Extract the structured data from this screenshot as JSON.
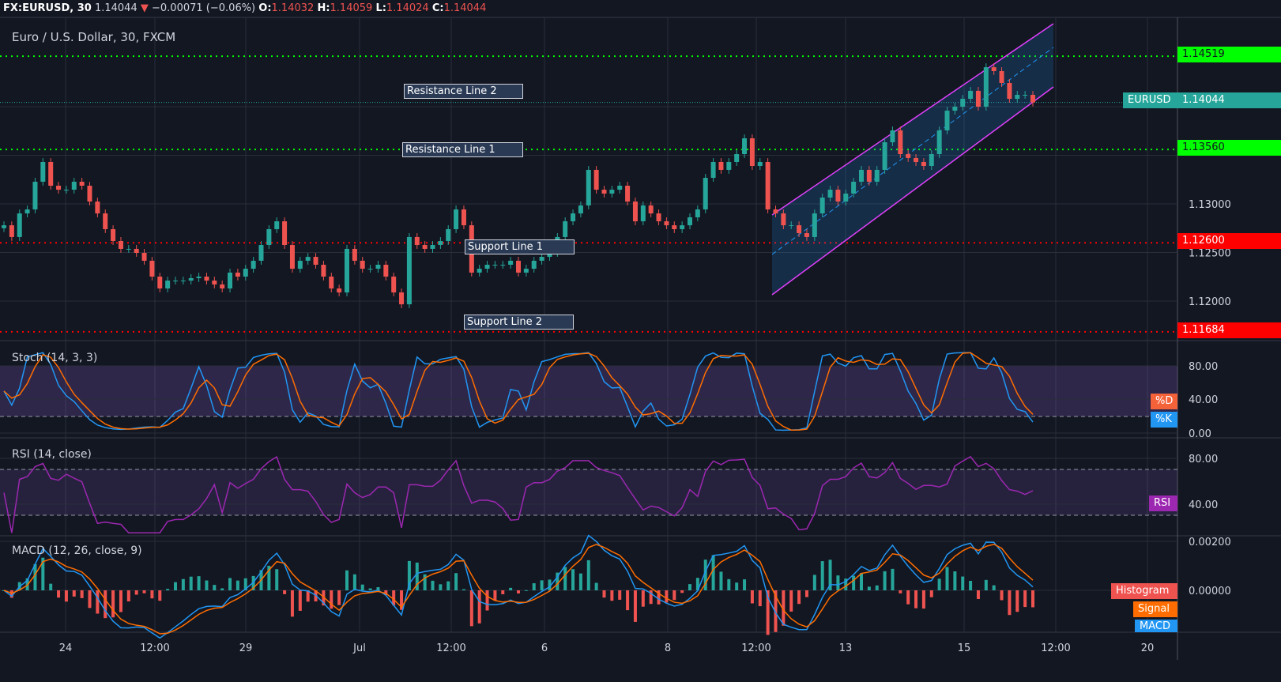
{
  "header": {
    "symbol": "FX:EURUSD, 30",
    "last": "1.14044",
    "change": "−0.00071 (−0.06%)",
    "o_label": "O:",
    "o": "1.14032",
    "h_label": "H:",
    "h": "1.14059",
    "l_label": "L:",
    "l": "1.14024",
    "c_label": "C:",
    "c": "1.14044"
  },
  "pane_title": "Euro / U.S. Dollar, 30, FXCM",
  "colors": {
    "background": "#131722",
    "up": "#26a69a",
    "down": "#ef5350",
    "resistance": "#00ff00",
    "support": "#ff0000",
    "channel": "#e040fb",
    "stoch_k": "#2196f3",
    "stoch_d": "#ff6d00",
    "rsi": "#9c27b0",
    "macd": "#2196f3",
    "signal": "#ff6d00"
  },
  "annotations": [
    {
      "label": "Resistance Line 2"
    },
    {
      "label": "Resistance Line 1"
    },
    {
      "label": "Support Line 1"
    },
    {
      "label": "Support Line 2"
    }
  ],
  "levels": [
    {
      "price": 1.14519,
      "label": "1.14519",
      "type": "resistance"
    },
    {
      "price": 1.1356,
      "label": "1.13560",
      "type": "resistance"
    },
    {
      "price": 1.126,
      "label": "1.12600",
      "type": "support"
    },
    {
      "price": 1.11684,
      "label": "1.11684",
      "type": "support"
    }
  ],
  "last_price_tag": {
    "symbol": "EURUSD",
    "price": "1.14044"
  },
  "indicators": {
    "stoch": {
      "title": "Stoch (14, 3, 3)",
      "d_label": "%D",
      "k_label": "%K",
      "ticks": [
        "80.00",
        "40.00",
        "0.00"
      ]
    },
    "rsi": {
      "title": "RSI (14, close)",
      "label": "RSI",
      "ticks": [
        "80.00",
        "40.00"
      ]
    },
    "macd": {
      "title": "MACD (12, 26, close, 9)",
      "hist_label": "Histogram",
      "signal_label": "Signal",
      "macd_label": "MACD",
      "ticks": [
        "0.00200",
        "0.00000"
      ]
    }
  },
  "chart_data": {
    "type": "candlestick",
    "title": "Euro / U.S. Dollar, 30, FXCM",
    "y_ticks": [
      "1.13000",
      "1.12500",
      "1.12000"
    ],
    "y_range": [
      1.1155,
      1.1483
    ],
    "x_ticks": [
      "24",
      "12:00",
      "29",
      "Jul",
      "12:00",
      "6",
      "8",
      "12:00",
      "13",
      "12:00",
      "15",
      "12:00",
      "20"
    ],
    "grid": true,
    "close": [
      1.1278,
      1.12659,
      1.12902,
      1.12943,
      1.13228,
      1.13431,
      1.13187,
      1.13146,
      1.13146,
      1.13228,
      1.13187,
      1.13024,
      1.12902,
      1.1274,
      1.12618,
      1.12537,
      1.12537,
      1.12496,
      1.12415,
      1.12252,
      1.1213,
      1.12211,
      1.12211,
      1.12211,
      1.12236,
      1.12252,
      1.12211,
      1.12171,
      1.1213,
      1.12293,
      1.12252,
      1.12333,
      1.12415,
      1.12577,
      1.1274,
      1.12821,
      1.12577,
      1.12333,
      1.12415,
      1.12455,
      1.12374,
      1.12252,
      1.1213,
      1.12089,
      1.12537,
      1.12415,
      1.12333,
      1.12333,
      1.12374,
      1.12252,
      1.12089,
      1.11967,
      1.12659,
      1.12577,
      1.12537,
      1.12577,
      1.12618,
      1.1274,
      1.12943,
      1.1278,
      1.12293,
      1.12333,
      1.12374,
      1.12374,
      1.12374,
      1.12415,
      1.12293,
      1.12333,
      1.12415,
      1.12455,
      1.12496,
      1.12659,
      1.12821,
      1.12902,
      1.12984,
      1.1335,
      1.13146,
      1.13106,
      1.13146,
      1.13187,
      1.13024,
      1.12821,
      1.12984,
      1.12902,
      1.12821,
      1.1278,
      1.1274,
      1.1278,
      1.12862,
      1.12943,
      1.13268,
      1.13431,
      1.1335,
      1.13431,
      1.13512,
      1.13675,
      1.1339,
      1.13431,
      1.12943,
      1.12902,
      1.1278,
      1.1278,
      1.12699,
      1.12659,
      1.12902,
      1.13065,
      1.13146,
      1.13024,
      1.13106,
      1.13228,
      1.1335,
      1.13228,
      1.1335,
      1.13634,
      1.13756,
      1.13512,
      1.13472,
      1.13431,
      1.1339,
      1.13512,
      1.13756,
      1.13959,
      1.14,
      1.14081,
      1.14163,
      1.14,
      1.14406,
      1.14366,
      1.14244,
      1.14081,
      1.14122,
      1.14122,
      1.14044
    ]
  }
}
